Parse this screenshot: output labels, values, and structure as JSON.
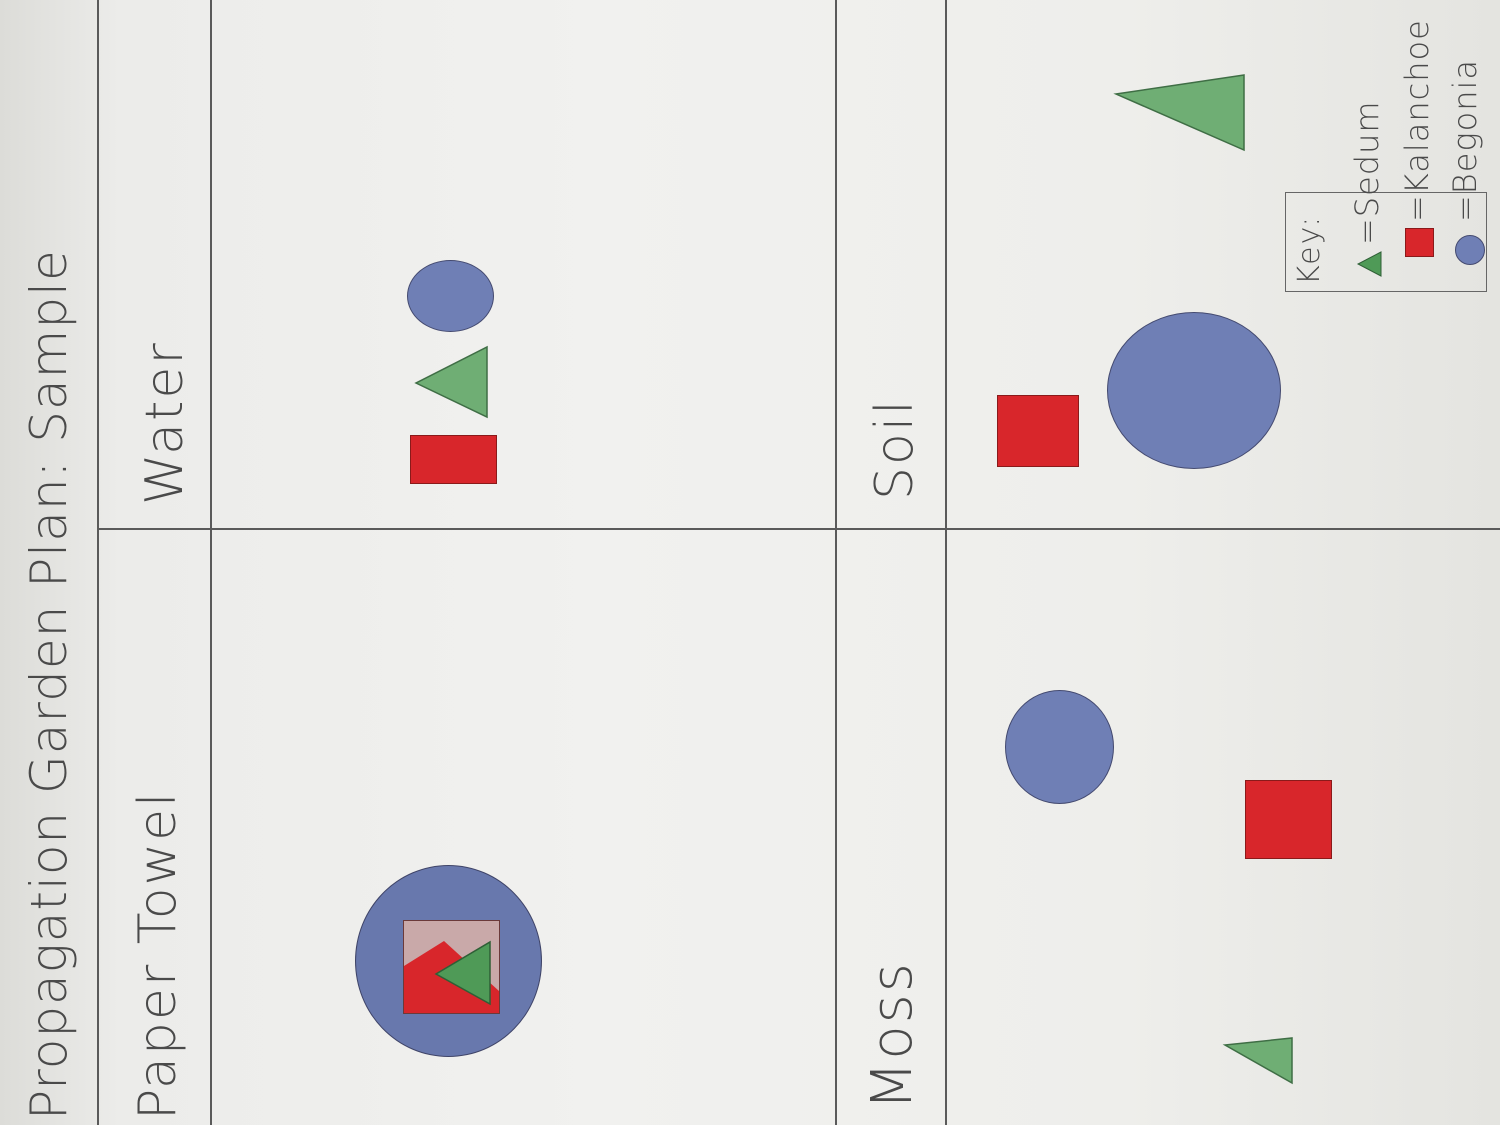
{
  "title": "Propagation Garden Plan: Sample",
  "quadrants": {
    "paper_towel": {
      "label": "Paper Towel"
    },
    "water": {
      "label": "Water"
    },
    "moss": {
      "label": "Moss"
    },
    "soil": {
      "label": "Soil"
    }
  },
  "key": {
    "heading": "Key:",
    "items": [
      {
        "label": "=Sedum",
        "icon": "green-triangle-icon",
        "color": "#6fae74"
      },
      {
        "label": "=Kalanchoe",
        "icon": "red-square-icon",
        "color": "#d8262b"
      },
      {
        "label": "=Begonia",
        "icon": "blue-circle-icon",
        "color": "#6f7fb5"
      }
    ]
  },
  "colors": {
    "sedum": "#6fae74",
    "kalanchoe": "#d8262b",
    "begonia": "#6f7fb5"
  }
}
